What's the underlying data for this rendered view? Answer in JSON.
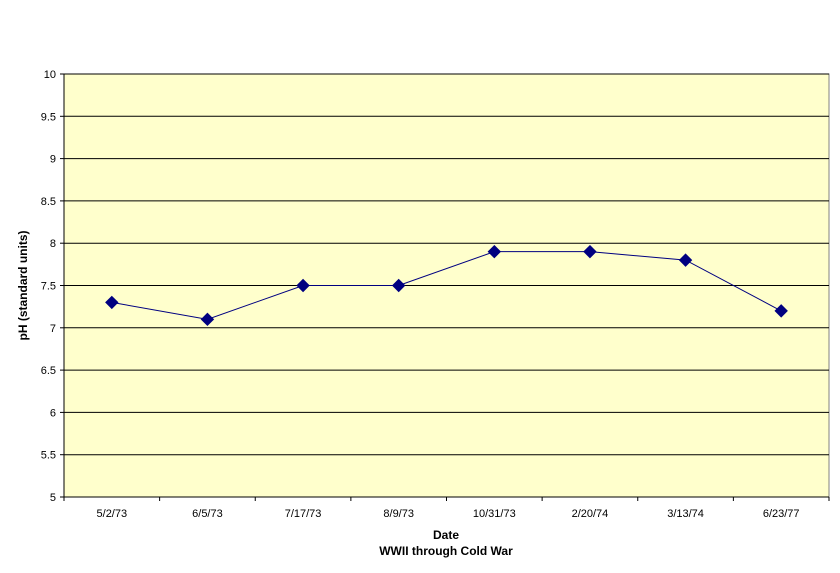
{
  "chart_data": {
    "type": "line",
    "title": "",
    "xlabel": "Date",
    "xlabel_sub": "WWII through Cold War",
    "ylabel": "pH (standard units)",
    "ylim": [
      5,
      10
    ],
    "y_ticks": [
      "5",
      "5.5",
      "6",
      "6.5",
      "7",
      "7.5",
      "8",
      "8.5",
      "9",
      "9.5",
      "10"
    ],
    "categories": [
      "5/2/73",
      "6/5/73",
      "7/17/73",
      "8/9/73",
      "10/31/73",
      "2/20/74",
      "3/13/74",
      "6/23/77"
    ],
    "series": [
      {
        "values": [
          7.3,
          7.1,
          7.5,
          7.5,
          7.9,
          7.9,
          7.8,
          7.2
        ]
      }
    ],
    "grid": true,
    "legend": "none",
    "colors": {
      "plot_background": "#FFFFCC",
      "line": "#000080",
      "marker": "#000080",
      "grid": "#000000"
    }
  }
}
